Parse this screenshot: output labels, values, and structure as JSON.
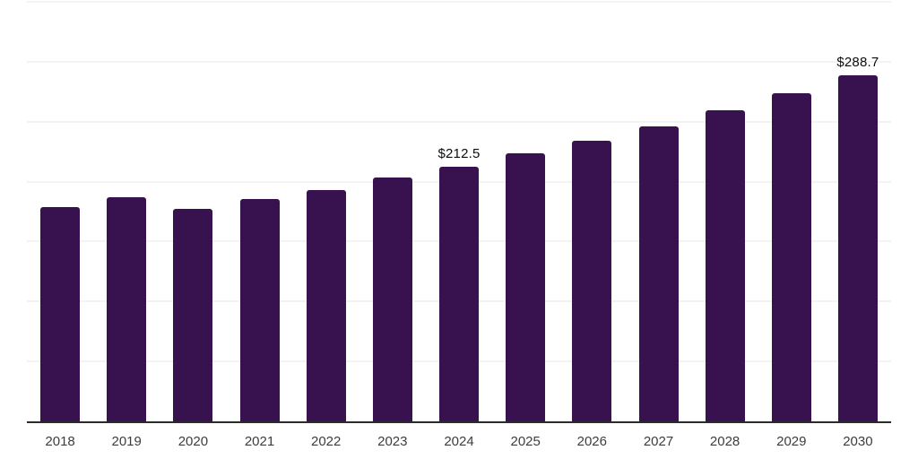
{
  "chart_data": {
    "type": "bar",
    "title": "",
    "xlabel": "",
    "ylabel": "",
    "categories": [
      "2018",
      "2019",
      "2020",
      "2021",
      "2022",
      "2023",
      "2024",
      "2025",
      "2026",
      "2027",
      "2028",
      "2029",
      "2030"
    ],
    "values": [
      179.1,
      187.1,
      177.1,
      185.3,
      193.3,
      203.3,
      212.5,
      223.3,
      234.0,
      246.4,
      259.6,
      273.8,
      288.7
    ],
    "data_labels": [
      "",
      "",
      "",
      "",
      "",
      "",
      "$212.5",
      "",
      "",
      "",
      "",
      "",
      "$288.7"
    ],
    "ylim": [
      0,
      350
    ],
    "gridline_step": 50,
    "grid": "horizontal",
    "legend": "none",
    "y_tick_labels_visible": false,
    "colors": {
      "bar": "#38124e",
      "gridline": "#f3f3f3",
      "axis_line": "#2b2b2b",
      "data_label": "#0d0d0d",
      "tick_label": "#3d3d3d",
      "background": "#ffffff"
    }
  }
}
